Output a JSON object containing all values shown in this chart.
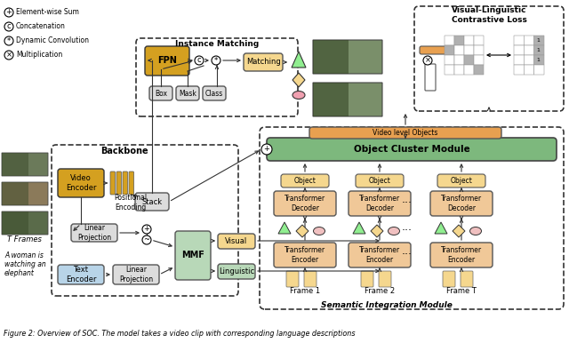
{
  "title": "Figure 2: Overview of SOC. The model takes a video clip with corresponding language descriptions",
  "bg_color": "#ffffff",
  "legend_items": [
    {
      "symbol": "+",
      "label": "Element-wise Sum"
    },
    {
      "symbol": "c",
      "label": "Concatenation"
    },
    {
      "symbol": "*",
      "label": "Dynamic Convolution"
    },
    {
      "symbol": "x",
      "label": "Multiplication"
    }
  ],
  "colors": {
    "yellow_box": "#D4A020",
    "yellow_light": "#F5D78E",
    "green_box": "#7DB87D",
    "green_light": "#B8D8B8",
    "orange_box": "#E8A050",
    "orange_light": "#F0C898",
    "gray_box": "#C0C0C0",
    "gray_light": "#DCDCDC",
    "blue_light": "#B8D4E8",
    "arrow": "#333333",
    "dashed_border": "#333333"
  }
}
